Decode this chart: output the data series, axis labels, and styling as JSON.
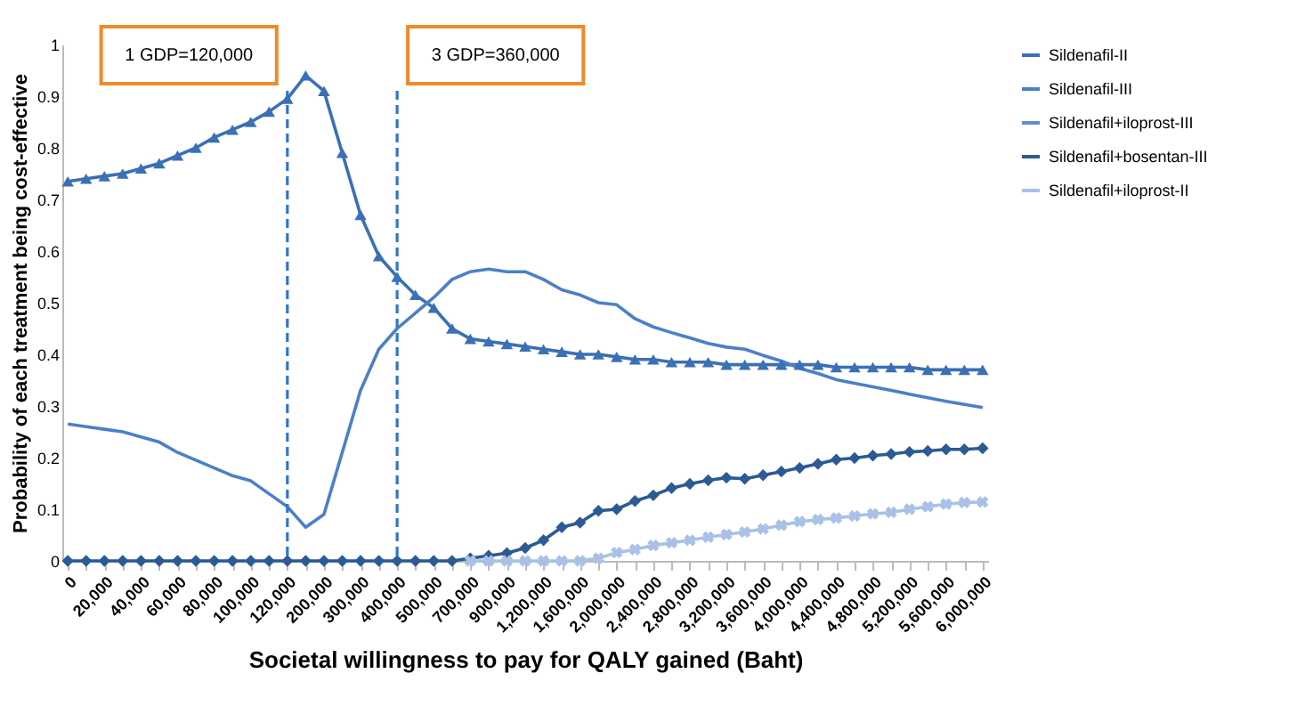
{
  "chart_data": {
    "type": "line",
    "xlabel": "Societal   willingness to pay   for QALY gained (Baht)",
    "ylabel": "Probability of each treatment being cost-effective",
    "categories": [
      "0",
      null,
      "20,000",
      null,
      "40,000",
      null,
      "60,000",
      null,
      "80,000",
      null,
      "100,000",
      null,
      "120,000",
      null,
      "200,000",
      null,
      "300,000",
      null,
      "400,000",
      null,
      "500,000",
      null,
      "700,000",
      null,
      "900,000",
      null,
      "1,200,000",
      null,
      "1,600,000",
      null,
      "2,000,000",
      null,
      "2,400,000",
      null,
      "2,800,000",
      null,
      "3,200,000",
      null,
      "3,600,000",
      null,
      "4,000,000",
      null,
      "4,400,000",
      null,
      "4,800,000",
      null,
      "5,200,000",
      null,
      "5,600,000",
      null,
      "6,000,000"
    ],
    "series": [
      {
        "name": "Sildenafil-II",
        "color": "#3a70b5",
        "marker": "triangle",
        "values": [
          0.735,
          0.74,
          0.745,
          0.75,
          0.76,
          0.77,
          0.785,
          0.8,
          0.82,
          0.835,
          0.85,
          0.87,
          0.895,
          0.94,
          0.91,
          0.79,
          0.67,
          0.59,
          0.55,
          0.515,
          0.49,
          0.45,
          0.43,
          0.425,
          0.42,
          0.415,
          0.41,
          0.405,
          0.4,
          0.4,
          0.395,
          0.39,
          0.39,
          0.385,
          0.385,
          0.385,
          0.38,
          0.38,
          0.38,
          0.38,
          0.38,
          0.38,
          0.375,
          0.375,
          0.375,
          0.375,
          0.375,
          0.37,
          0.37,
          0.37,
          0.37
        ]
      },
      {
        "name": "Sildenafil-III",
        "color": "#4a80c8",
        "values": [
          0.265,
          0.26,
          0.255,
          0.25,
          0.24,
          0.23,
          0.21,
          0.195,
          0.18,
          0.165,
          0.155,
          0.13,
          0.105,
          0.065,
          0.09,
          0.21,
          0.33,
          0.41,
          0.45,
          0.48,
          0.51,
          0.545,
          0.56,
          0.565,
          0.56,
          0.56,
          0.545,
          0.525,
          0.515,
          0.5,
          0.496,
          0.469,
          0.453,
          0.442,
          0.432,
          0.421,
          0.414,
          0.41,
          0.398,
          0.387,
          0.373,
          0.363,
          0.351,
          0.344,
          0.337,
          0.33,
          0.323,
          0.316,
          0.309,
          0.303,
          0.297
        ]
      },
      {
        "name": "Sildenafil+iloprost-III",
        "color": "#5b8fd0",
        "values": [
          null,
          null,
          null,
          null,
          null,
          null,
          null,
          null,
          null,
          null,
          null,
          null,
          null,
          null,
          null,
          null,
          null,
          null,
          null,
          null,
          null,
          null,
          null,
          null,
          null,
          null,
          null,
          null,
          null,
          null,
          null,
          null,
          null,
          null,
          null,
          null,
          null,
          null,
          null,
          null,
          null,
          null,
          null,
          null,
          null,
          null,
          null,
          null,
          null,
          null,
          null
        ]
      },
      {
        "name": "Sildenafil+bosentan-III",
        "color": "#2c5a94",
        "marker": "diamond",
        "values": [
          0,
          0,
          0,
          0,
          0,
          0,
          0,
          0,
          0,
          0,
          0,
          0,
          0,
          0,
          0,
          0,
          0,
          0,
          0,
          0,
          0,
          0,
          0.005,
          0.01,
          0.015,
          0.025,
          0.04,
          0.065,
          0.074,
          0.097,
          0.1,
          0.116,
          0.127,
          0.141,
          0.149,
          0.156,
          0.161,
          0.159,
          0.166,
          0.173,
          0.18,
          0.188,
          0.196,
          0.199,
          0.204,
          0.207,
          0.211,
          0.213,
          0.216,
          0.216,
          0.218
        ]
      },
      {
        "name": "Sildenafil+iloprost-II",
        "color": "#a9c1e6",
        "marker": "cross",
        "values": [
          null,
          null,
          null,
          null,
          null,
          null,
          null,
          null,
          null,
          null,
          null,
          null,
          null,
          null,
          null,
          null,
          null,
          null,
          null,
          null,
          null,
          null,
          0,
          0,
          0,
          0,
          0,
          0,
          0,
          0.005,
          0.016,
          0.022,
          0.03,
          0.035,
          0.04,
          0.046,
          0.051,
          0.056,
          0.062,
          0.069,
          0.076,
          0.08,
          0.083,
          0.087,
          0.091,
          0.094,
          0.1,
          0.105,
          0.11,
          0.113,
          0.114
        ]
      }
    ],
    "ylim": [
      0,
      1
    ],
    "yticks": [
      0,
      0.1,
      0.2,
      0.3,
      0.4,
      0.5,
      0.6,
      0.7,
      0.8,
      0.9,
      1
    ],
    "ref_lines": [
      {
        "axis": "x",
        "value": "120,000",
        "label": "1 GDP=120,000",
        "color": "#2e75d0",
        "line_style": "dashed"
      },
      {
        "axis": "x",
        "value": "400,000",
        "label": "3 GDP=360,000",
        "color": "#2e75d0",
        "line_style": "dashed"
      }
    ],
    "grid": false,
    "legend": "right"
  }
}
